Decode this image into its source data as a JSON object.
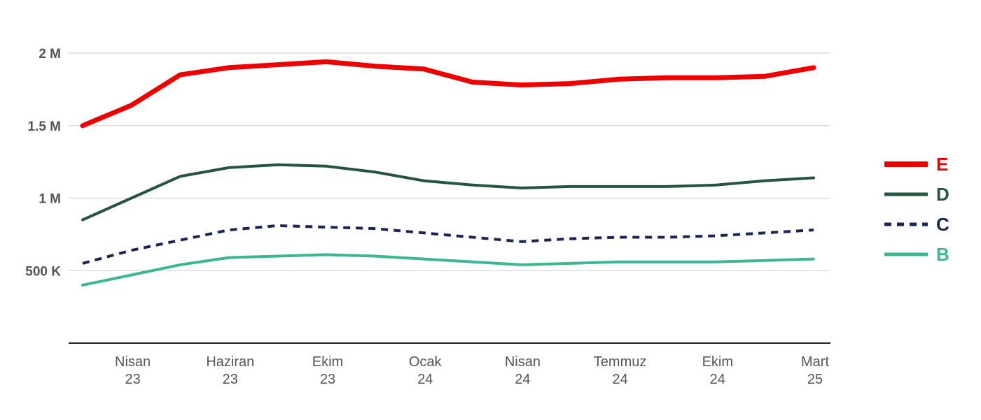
{
  "chart_data": {
    "type": "line",
    "title": "",
    "xlabel": "",
    "ylabel": "",
    "ylim": [
      0,
      2000000
    ],
    "grid": true,
    "legend_position": "right",
    "y_ticks": [
      {
        "value": 500000,
        "label": "500 K"
      },
      {
        "value": 1000000,
        "label": "1 M"
      },
      {
        "value": 1500000,
        "label": "1.5 M"
      },
      {
        "value": 2000000,
        "label": "2 M"
      }
    ],
    "x_ticks": [
      {
        "index": 1,
        "line1": "Nisan",
        "line2": "23"
      },
      {
        "index": 3,
        "line1": "Haziran",
        "line2": "23"
      },
      {
        "index": 5,
        "line1": "Ekim",
        "line2": "23"
      },
      {
        "index": 7,
        "line1": "Ocak",
        "line2": "24"
      },
      {
        "index": 9,
        "line1": "Nisan",
        "line2": "24"
      },
      {
        "index": 11,
        "line1": "Temmuz",
        "line2": "24"
      },
      {
        "index": 13,
        "line1": "Ekim",
        "line2": "24"
      },
      {
        "index": 15,
        "line1": "Mart",
        "line2": "25"
      }
    ],
    "x": [
      0,
      1,
      2,
      3,
      4,
      5,
      6,
      7,
      8,
      9,
      10,
      11,
      12,
      13,
      14,
      15
    ],
    "series": [
      {
        "name": "E",
        "color": "#ee0000",
        "width": 7,
        "dash": "",
        "values": [
          1500000,
          1640000,
          1850000,
          1900000,
          1920000,
          1940000,
          1910000,
          1890000,
          1800000,
          1780000,
          1790000,
          1820000,
          1830000,
          1830000,
          1840000,
          1900000
        ]
      },
      {
        "name": "D",
        "color": "#24553d",
        "width": 4,
        "dash": "",
        "values": [
          850000,
          1000000,
          1150000,
          1210000,
          1230000,
          1220000,
          1180000,
          1120000,
          1090000,
          1070000,
          1080000,
          1080000,
          1080000,
          1090000,
          1120000,
          1140000
        ]
      },
      {
        "name": "C",
        "color": "#1b2456",
        "width": 4,
        "dash": "10,8",
        "values": [
          550000,
          640000,
          710000,
          780000,
          810000,
          800000,
          790000,
          760000,
          730000,
          700000,
          720000,
          730000,
          730000,
          740000,
          760000,
          780000
        ]
      },
      {
        "name": "B",
        "color": "#3db694",
        "width": 4,
        "dash": "",
        "values": [
          400000,
          470000,
          540000,
          590000,
          600000,
          610000,
          600000,
          580000,
          560000,
          540000,
          550000,
          560000,
          560000,
          560000,
          570000,
          580000
        ]
      }
    ]
  }
}
